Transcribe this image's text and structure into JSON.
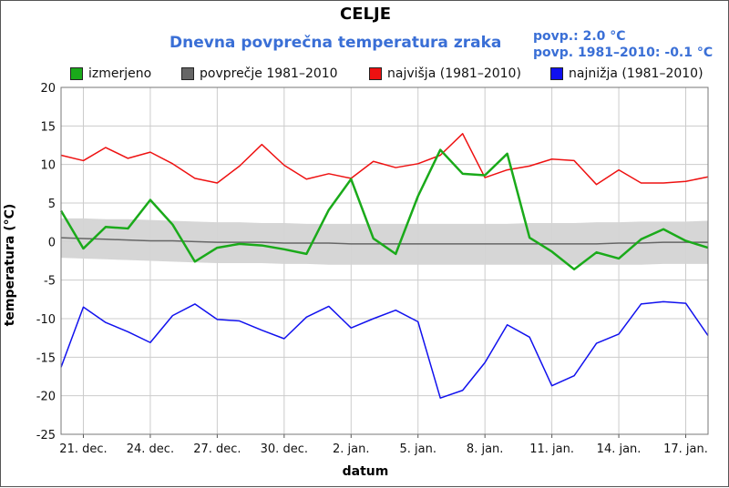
{
  "header": {
    "title": "CELJE",
    "subtitle": "Dnevna povprečna temperatura zraka",
    "stat_measured": "povp.: 2.0 °C",
    "stat_normal": "povp. 1981–2010: -0.1 °C"
  },
  "legend": [
    {
      "label": "izmerjeno",
      "color": "#1aaa1a"
    },
    {
      "label": "povprečje 1981–2010",
      "color": "#666666"
    },
    {
      "label": "najvišja (1981–2010)",
      "color": "#ee1111"
    },
    {
      "label": "najnižja (1981–2010)",
      "color": "#1111ee"
    }
  ],
  "chart_data": {
    "type": "line",
    "title": "Dnevna povprečna temperatura zraka",
    "xlabel": "datum",
    "ylabel": "temperatura (°C)",
    "ylim": [
      -25,
      20
    ],
    "yticks": [
      20,
      15,
      10,
      5,
      0,
      -5,
      -10,
      -15,
      -20,
      -25
    ],
    "grid": true,
    "legend_position": "top",
    "x": [
      "20. dec.",
      "21. dec.",
      "22. dec.",
      "23. dec.",
      "24. dec.",
      "25. dec.",
      "26. dec.",
      "27. dec.",
      "28. dec.",
      "29. dec.",
      "30. dec.",
      "31. dec.",
      "1. jan.",
      "2. jan.",
      "3. jan.",
      "4. jan.",
      "5. jan.",
      "6. jan.",
      "7. jan.",
      "8. jan.",
      "9. jan.",
      "10. jan.",
      "11. jan.",
      "12. jan.",
      "13. jan.",
      "14. jan.",
      "15. jan.",
      "16. jan.",
      "17. jan.",
      "18. jan."
    ],
    "xtick_labels": [
      "21. dec.",
      "24. dec.",
      "27. dec.",
      "30. dec.",
      "2. jan.",
      "5. jan.",
      "8. jan.",
      "11. jan.",
      "14. jan.",
      "17. jan."
    ],
    "series": [
      {
        "name": "najvišja (1981–2010)",
        "color": "#ee1111",
        "width": 1.5,
        "values": [
          11.2,
          10.5,
          12.2,
          10.8,
          11.6,
          10.1,
          8.2,
          7.6,
          9.8,
          12.6,
          9.9,
          8.1,
          8.8,
          8.2,
          10.4,
          9.6,
          10.1,
          11.2,
          14.0,
          8.3,
          9.3,
          9.8,
          10.7,
          10.5,
          7.4,
          9.3,
          7.6,
          7.6,
          7.8,
          8.4
        ]
      },
      {
        "name": "povprečje 1981–2010",
        "color": "#666666",
        "width": 1.5,
        "values": [
          0.5,
          0.4,
          0.3,
          0.2,
          0.1,
          0.1,
          0.0,
          -0.1,
          -0.1,
          -0.1,
          -0.2,
          -0.2,
          -0.2,
          -0.3,
          -0.3,
          -0.3,
          -0.3,
          -0.3,
          -0.3,
          -0.3,
          -0.3,
          -0.3,
          -0.3,
          -0.3,
          -0.3,
          -0.2,
          -0.2,
          -0.1,
          -0.1,
          -0.1
        ]
      },
      {
        "name": "izmerjeno",
        "color": "#1aaa1a",
        "width": 2.5,
        "values": [
          4.0,
          -0.9,
          1.9,
          1.7,
          5.4,
          2.2,
          -2.6,
          -0.8,
          -0.3,
          -0.5,
          -1.0,
          -1.6,
          4.1,
          8.1,
          0.4,
          -1.6,
          5.9,
          11.9,
          8.8,
          8.6,
          11.4,
          0.5,
          -1.3,
          -3.6,
          -1.4,
          -2.2,
          0.3,
          1.6,
          0.1,
          -0.8
        ]
      },
      {
        "name": "najnižja (1981–2010)",
        "color": "#1111ee",
        "width": 1.5,
        "values": [
          -16.3,
          -8.5,
          -10.5,
          -11.7,
          -13.1,
          -9.6,
          -8.1,
          -10.1,
          -10.3,
          -11.5,
          -12.6,
          -9.8,
          -8.4,
          -11.2,
          -10.0,
          -8.9,
          -10.4,
          -20.3,
          -19.3,
          -15.7,
          -10.8,
          -12.4,
          -18.7,
          -17.4,
          -13.2,
          -12.0,
          -8.1,
          -7.8,
          -8.0,
          -12.2
        ]
      }
    ],
    "band": {
      "color": "#d4d4d4",
      "upper": [
        3.0,
        3.0,
        2.9,
        2.9,
        2.8,
        2.7,
        2.6,
        2.5,
        2.5,
        2.4,
        2.4,
        2.3,
        2.3,
        2.3,
        2.3,
        2.3,
        2.3,
        2.3,
        2.3,
        2.3,
        2.3,
        2.4,
        2.4,
        2.4,
        2.5,
        2.5,
        2.6,
        2.6,
        2.6,
        2.7
      ],
      "lower": [
        -2.1,
        -2.2,
        -2.3,
        -2.4,
        -2.5,
        -2.6,
        -2.7,
        -2.8,
        -2.8,
        -2.8,
        -2.9,
        -2.9,
        -3.0,
        -3.0,
        -3.0,
        -3.0,
        -3.0,
        -3.0,
        -3.0,
        -3.0,
        -3.0,
        -3.0,
        -3.0,
        -3.0,
        -3.0,
        -3.0,
        -3.0,
        -2.9,
        -2.9,
        -2.9
      ]
    }
  }
}
